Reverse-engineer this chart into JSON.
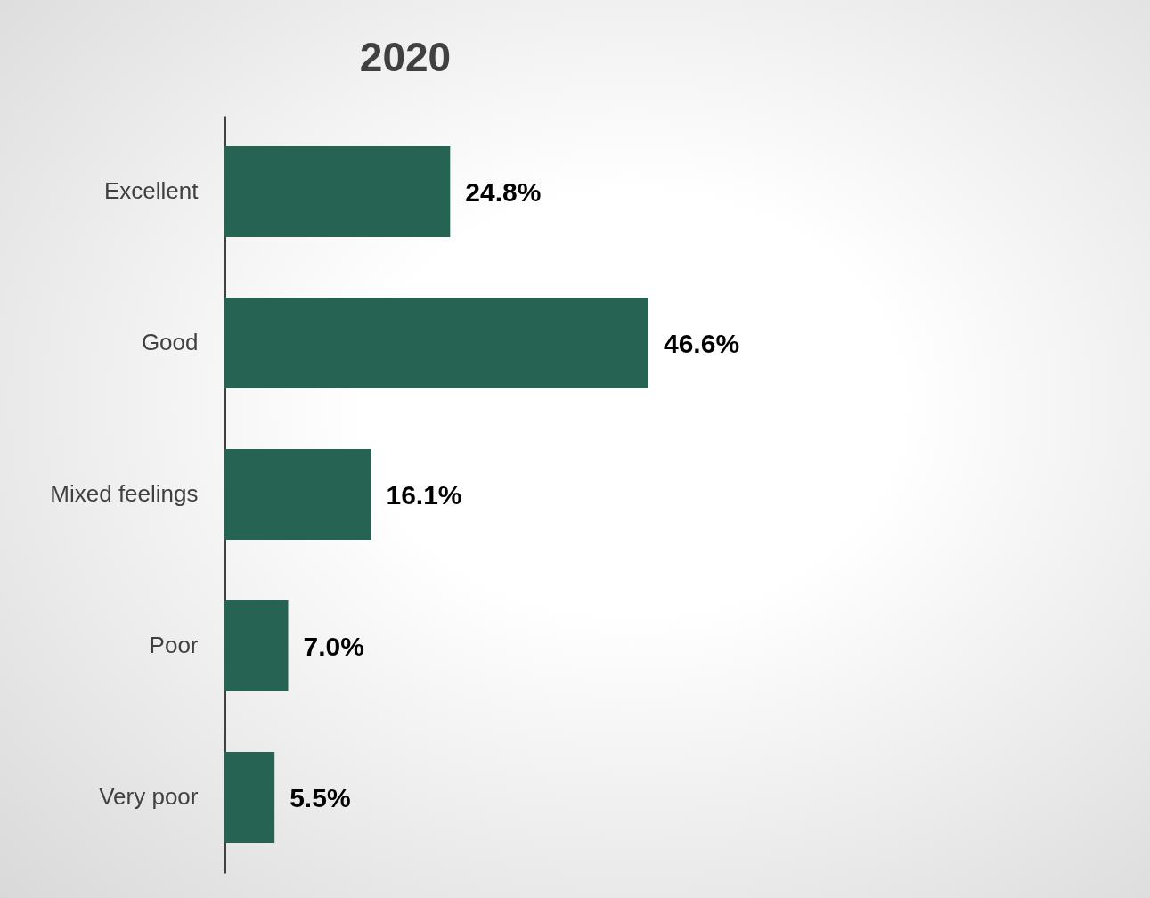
{
  "chart_data": {
    "type": "bar",
    "title": "2020",
    "orientation": "horizontal",
    "categories": [
      "Excellent",
      "Good",
      "Mixed feelings",
      "Poor",
      "Very poor"
    ],
    "values": [
      24.8,
      46.6,
      16.1,
      7.0,
      5.5
    ],
    "value_labels": [
      "24.8%",
      "46.6%",
      "16.1%",
      "7.0%",
      "5.5%"
    ],
    "color": "#276352",
    "tick_labels": "y"
  }
}
